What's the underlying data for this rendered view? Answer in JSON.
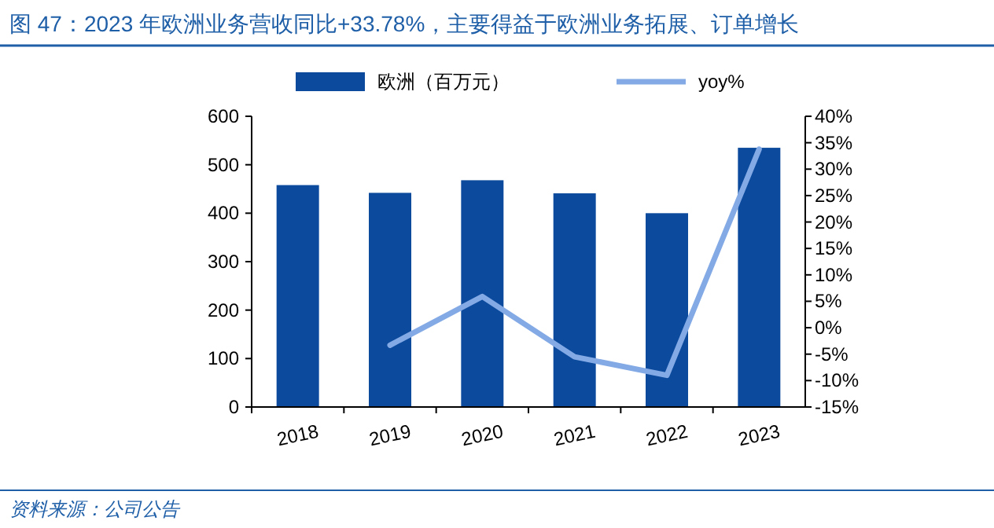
{
  "chart_data": {
    "type": "bar",
    "title": "图 47：2023 年欧洲业务营收同比+33.78%，主要得益于欧洲业务拓展、订单增长",
    "annotations": [
      "资料来源：公司公告"
    ],
    "categories": [
      "2018",
      "2019",
      "2020",
      "2021",
      "2022",
      "2023"
    ],
    "series": [
      {
        "name": "欧洲（百万元）",
        "color": "#0b4a9c",
        "values": [
          458,
          442,
          468,
          441,
          400,
          535
        ]
      },
      {
        "name": "yoy%",
        "type": "line",
        "axis": "y2",
        "color": "#84aae6",
        "values": [
          null,
          -3.3,
          5.9,
          -5.5,
          -9.0,
          33.78
        ]
      }
    ],
    "ylim": [
      0,
      600
    ],
    "yticks": [
      0,
      100,
      200,
      300,
      400,
      500,
      600
    ],
    "y2lim": [
      -15,
      40
    ],
    "y2ticks": [
      {
        "value": -15,
        "label": "-15%"
      },
      {
        "value": -10,
        "label": "-10%"
      },
      {
        "value": -5,
        "label": "-5%"
      },
      {
        "value": 0,
        "label": "0%"
      },
      {
        "value": 5,
        "label": "5%"
      },
      {
        "value": 10,
        "label": "10%"
      },
      {
        "value": 15,
        "label": "15%"
      },
      {
        "value": 20,
        "label": "20%"
      },
      {
        "value": 25,
        "label": "25%"
      },
      {
        "value": 30,
        "label": "30%"
      },
      {
        "value": 35,
        "label": "35%"
      },
      {
        "value": 40,
        "label": "40%"
      }
    ],
    "legend": "top",
    "grid": false
  }
}
